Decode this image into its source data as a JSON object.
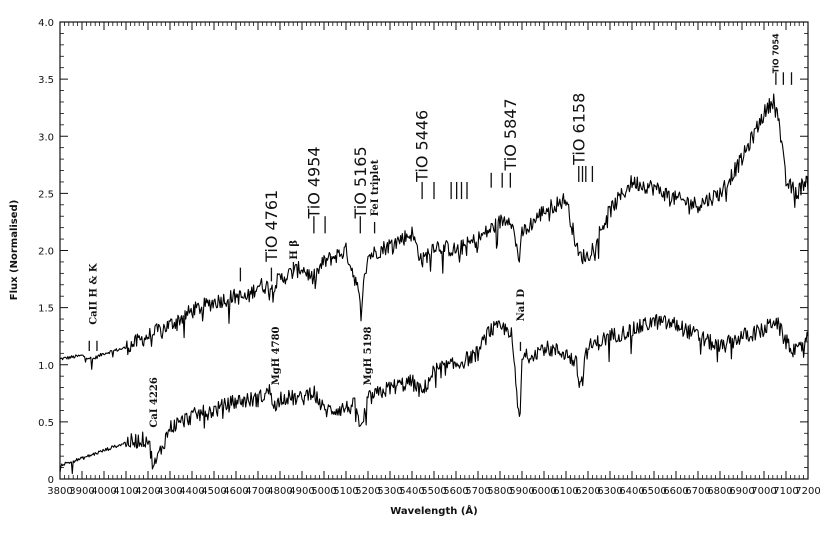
{
  "chart_data": {
    "type": "line",
    "xlabel": "Wavelength (Å)",
    "ylabel": "Flux (Normalised)",
    "xlim": [
      3800,
      7200
    ],
    "ylim": [
      0,
      4
    ],
    "x_ticks": [
      "3800",
      "3900",
      "4000",
      "4100",
      "4200",
      "4300",
      "4400",
      "4500",
      "4600",
      "4700",
      "4800",
      "4900",
      "5000",
      "5100",
      "5200",
      "5300",
      "5400",
      "5500",
      "5600",
      "5700",
      "5800",
      "5900",
      "6000",
      "6100",
      "6200",
      "6300",
      "6400",
      "6500",
      "6600",
      "6700",
      "6800",
      "6900",
      "7000",
      "7100",
      "7200"
    ],
    "y_ticks": [
      "0",
      "0.5",
      "1.0",
      "1.5",
      "2.0",
      "2.5",
      "3.0",
      "3.5",
      "4.0"
    ],
    "grid": false,
    "series": [
      {
        "x": [
          3800,
          3900,
          3950,
          4000,
          4100,
          4200,
          4300,
          4400,
          4500,
          4600,
          4650,
          4700,
          4760,
          4800,
          4900,
          4950,
          5000,
          5100,
          5150,
          5165,
          5200,
          5300,
          5400,
          5446,
          5500,
          5600,
          5700,
          5800,
          5847,
          5890,
          5900,
          6000,
          6100,
          6158,
          6200,
          6300,
          6400,
          6500,
          6600,
          6700,
          6800,
          6900,
          7000,
          7054,
          7100,
          7150,
          7200
        ],
        "values": [
          1.05,
          1.08,
          1.05,
          1.1,
          1.15,
          1.25,
          1.35,
          1.47,
          1.55,
          1.6,
          1.58,
          1.7,
          1.68,
          1.75,
          1.85,
          1.75,
          1.9,
          2.0,
          1.7,
          1.5,
          1.95,
          2.05,
          2.15,
          1.9,
          2.05,
          2.0,
          2.1,
          2.25,
          2.3,
          1.9,
          2.15,
          2.35,
          2.45,
          1.95,
          1.95,
          2.35,
          2.6,
          2.55,
          2.45,
          2.4,
          2.5,
          2.8,
          3.2,
          3.35,
          2.6,
          2.5,
          2.65
        ]
      },
      {
        "x": [
          3800,
          3900,
          4000,
          4100,
          4200,
          4226,
          4300,
          4400,
          4500,
          4600,
          4700,
          4760,
          4780,
          4800,
          4900,
          4950,
          5000,
          5100,
          5150,
          5165,
          5200,
          5300,
          5400,
          5446,
          5500,
          5600,
          5700,
          5750,
          5800,
          5850,
          5890,
          5900,
          6000,
          6100,
          6150,
          6158,
          6200,
          6300,
          6400,
          6500,
          6600,
          6700,
          6800,
          6900,
          7000,
          7050,
          7100,
          7150,
          7200
        ],
        "values": [
          0.12,
          0.18,
          0.25,
          0.32,
          0.35,
          0.1,
          0.45,
          0.55,
          0.6,
          0.68,
          0.7,
          0.78,
          0.6,
          0.72,
          0.7,
          0.78,
          0.6,
          0.62,
          0.65,
          0.4,
          0.7,
          0.8,
          0.85,
          0.75,
          0.95,
          1.0,
          1.1,
          1.3,
          1.32,
          1.3,
          0.45,
          1.05,
          1.15,
          1.1,
          1.0,
          0.8,
          1.15,
          1.25,
          1.3,
          1.38,
          1.35,
          1.25,
          1.15,
          1.25,
          1.3,
          1.4,
          1.2,
          1.1,
          1.25
        ]
      }
    ],
    "annotations": [
      {
        "text": "CaII H & K",
        "x": 3950,
        "y": 1.35,
        "rotate": true,
        "size": "small",
        "ticks": [
          3933,
          3968
        ],
        "tick_y": [
          1.12,
          1.21
        ]
      },
      {
        "text": "CaI 4226",
        "x": 4226,
        "y": 0.45,
        "rotate": true,
        "size": "small",
        "ticks": [],
        "tick_y": []
      },
      {
        "text": "MgH 4780",
        "x": 4780,
        "y": 0.82,
        "rotate": true,
        "size": "small",
        "ticks": [],
        "tick_y": []
      },
      {
        "text": "MgH 5198",
        "x": 5198,
        "y": 0.82,
        "rotate": true,
        "size": "small",
        "ticks": [],
        "tick_y": []
      },
      {
        "text": "NaI D",
        "x": 5893,
        "y": 1.38,
        "rotate": true,
        "size": "small",
        "ticks": [
          5893
        ],
        "tick_y": [
          1.12,
          1.2
        ]
      },
      {
        "text": "TiO 4761",
        "x": 4761,
        "y": 1.9,
        "rotate": true,
        "size": "big",
        "ticks": [
          4620,
          4761
        ],
        "tick_y": [
          1.73,
          1.85
        ]
      },
      {
        "text": "H β",
        "x": 4861,
        "y": 1.92,
        "rotate": true,
        "size": "small",
        "ticks": [
          4861
        ],
        "tick_y": [
          1.8,
          1.9
        ]
      },
      {
        "text": "TiO 4954",
        "x": 4954,
        "y": 2.28,
        "rotate": true,
        "size": "big",
        "ticks": [
          4954,
          5005
        ],
        "tick_y": [
          2.15,
          2.3
        ]
      },
      {
        "text": "TiO 5165",
        "x": 5165,
        "y": 2.28,
        "rotate": true,
        "size": "big",
        "ticks": [
          5165
        ],
        "tick_y": [
          2.15,
          2.3
        ]
      },
      {
        "text": "FeI triplet",
        "x": 5230,
        "y": 2.3,
        "rotate": true,
        "size": "small",
        "ticks": [
          5230
        ],
        "tick_y": [
          2.15,
          2.25
        ]
      },
      {
        "text": "TiO 5446",
        "x": 5446,
        "y": 2.6,
        "rotate": true,
        "size": "big",
        "ticks": [
          5446,
          5500,
          5578,
          5603,
          5625,
          5650
        ],
        "tick_y": [
          2.45,
          2.6
        ]
      },
      {
        "text": "TiO 5847",
        "x": 5847,
        "y": 2.7,
        "rotate": true,
        "size": "big",
        "ticks": [
          5760,
          5810,
          5847
        ],
        "tick_y": [
          2.55,
          2.68
        ]
      },
      {
        "text": "TiO 6158",
        "x": 6158,
        "y": 2.75,
        "rotate": true,
        "size": "big",
        "ticks": [
          6158,
          6175,
          6190,
          6220
        ],
        "tick_y": [
          2.6,
          2.74
        ]
      },
      {
        "text": "TiO 7054",
        "x": 7054,
        "y": 3.55,
        "rotate": true,
        "size": "tiny",
        "ticks": [
          7054,
          7088,
          7125
        ],
        "tick_y": [
          3.45,
          3.56
        ]
      }
    ]
  }
}
